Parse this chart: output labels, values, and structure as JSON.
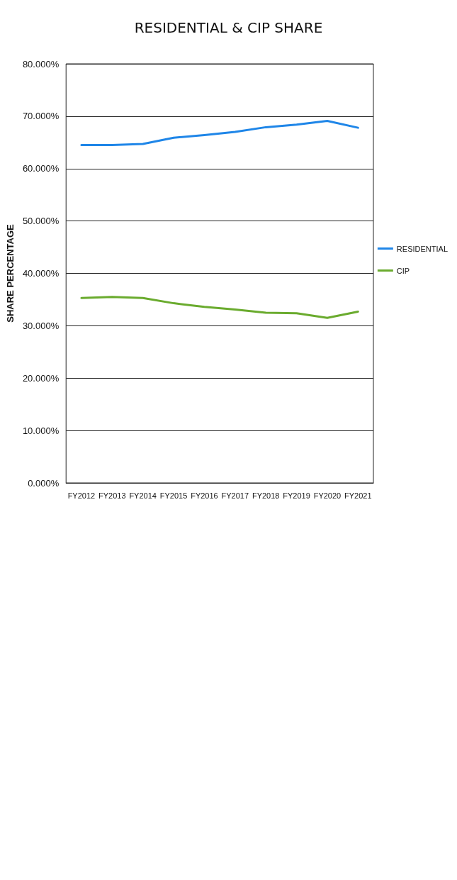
{
  "chart_data": {
    "type": "line",
    "title": "RESIDENTIAL & CIP SHARE",
    "ylabel": "SHARE PERCENTAGE",
    "categories": [
      "FY2012",
      "FY2013",
      "FY2014",
      "FY2015",
      "FY2016",
      "FY2017",
      "FY2018",
      "FY2019",
      "FY2020",
      "FY2021"
    ],
    "series": [
      {
        "name": "RESIDENTIAL",
        "color": "#1f86e8",
        "values": [
          64.5,
          64.5,
          64.7,
          65.9,
          66.4,
          67.0,
          67.9,
          68.4,
          69.1,
          67.8
        ]
      },
      {
        "name": "CIP",
        "color": "#6aab2e",
        "values": [
          35.3,
          35.5,
          35.3,
          34.3,
          33.6,
          33.1,
          32.5,
          32.4,
          31.5,
          32.7
        ]
      }
    ],
    "ylim": [
      0,
      80
    ],
    "yticks": [
      {
        "value": 0,
        "label": "0.000%"
      },
      {
        "value": 10,
        "label": "10.000%"
      },
      {
        "value": 20,
        "label": "20.000%"
      },
      {
        "value": 30,
        "label": "30.000%"
      },
      {
        "value": 40,
        "label": "40.000%"
      },
      {
        "value": 50,
        "label": "50.000%"
      },
      {
        "value": 60,
        "label": "60.000%"
      },
      {
        "value": 70,
        "label": "70.000%"
      },
      {
        "value": 80,
        "label": "80.000%"
      }
    ],
    "grid": "y",
    "legend": "right",
    "marker": "none",
    "line_style": "solid"
  }
}
